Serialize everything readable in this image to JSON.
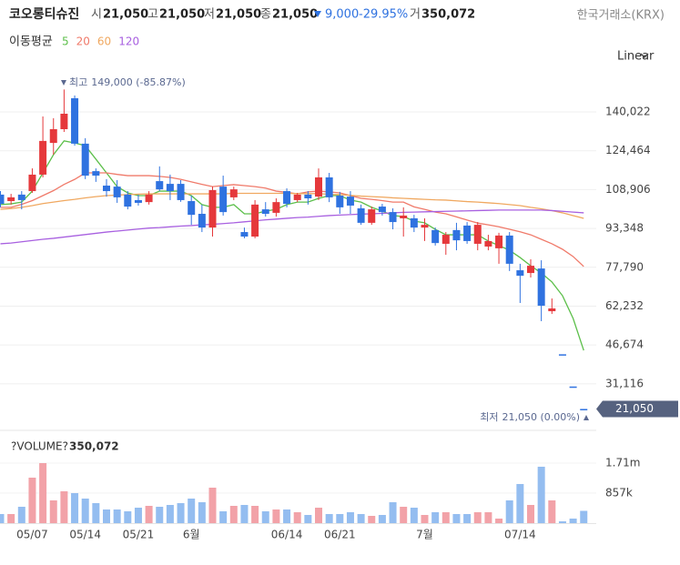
{
  "chart_data": {
    "type": "candlestick",
    "title": "코오롱티슈진",
    "quote": [
      {
        "label": "시",
        "value": "21,050"
      },
      {
        "label": "고",
        "value": "21,050"
      },
      {
        "label": "저",
        "value": "21,050"
      },
      {
        "label": "종",
        "value": "21,050"
      }
    ],
    "change": "9,000",
    "change_pct": "-29.95%",
    "volume_quote": {
      "label": "거",
      "value": "350,072"
    },
    "exchange": "한국거래소(KRX)",
    "ma_title": "이동평균",
    "scale": "Linear",
    "high_annotation": {
      "label": "최고",
      "text": "149,000 (-85.87%)"
    },
    "low_annotation": {
      "label": "최저",
      "text": "21,050 (0.00%)"
    },
    "last_price": {
      "value": 21050,
      "label": "21,050"
    },
    "categories": [
      null,
      null,
      null,
      "05/07",
      null,
      null,
      null,
      null,
      "05/14",
      null,
      null,
      null,
      null,
      "05/21",
      null,
      null,
      null,
      null,
      "6월",
      null,
      null,
      null,
      null,
      null,
      null,
      null,
      null,
      "06/14",
      null,
      null,
      null,
      null,
      "06/21",
      null,
      null,
      null,
      null,
      null,
      null,
      null,
      "7월",
      null,
      null,
      null,
      null,
      null,
      null,
      null,
      null,
      "07/14",
      null,
      null,
      null,
      null,
      null,
      null
    ],
    "open": [
      106900,
      104300,
      106900,
      108300,
      114900,
      127600,
      133100,
      145500,
      127300,
      116300,
      110500,
      110100,
      106900,
      104700,
      103900,
      112300,
      111200,
      111200,
      104300,
      99200,
      93700,
      110100,
      105800,
      91900,
      90100,
      101000,
      99600,
      108300,
      104700,
      106900,
      106100,
      113800,
      106500,
      106100,
      101400,
      95600,
      102100,
      99900,
      97400,
      97400,
      93700,
      92700,
      87200,
      92700,
      94500,
      87200,
      86100,
      85400,
      90500,
      76600,
      75500,
      77300,
      60200,
      42950,
      30050,
      21050
    ],
    "high": [
      108300,
      107200,
      108300,
      117400,
      138200,
      137500,
      149000,
      146600,
      129500,
      117400,
      113100,
      112700,
      108300,
      106900,
      108300,
      118200,
      114900,
      112700,
      106500,
      102900,
      110100,
      114500,
      110100,
      93700,
      104700,
      103900,
      105400,
      109400,
      107600,
      108300,
      117400,
      115600,
      108000,
      108300,
      102900,
      102100,
      103200,
      101400,
      101800,
      98800,
      97400,
      93700,
      91900,
      95600,
      95900,
      95900,
      90800,
      91600,
      91900,
      79200,
      81000,
      80600,
      65300,
      42950,
      30050,
      21050
    ],
    "low": [
      101800,
      102900,
      101000,
      107600,
      113800,
      122900,
      132000,
      126500,
      113100,
      112000,
      106100,
      103600,
      101000,
      102500,
      102900,
      108300,
      104700,
      104000,
      94800,
      91900,
      90100,
      98500,
      104700,
      89400,
      89400,
      98100,
      98100,
      101800,
      103900,
      102900,
      104700,
      103900,
      99200,
      99200,
      94800,
      94800,
      98500,
      93000,
      90100,
      91900,
      88300,
      86500,
      82800,
      84600,
      87200,
      84600,
      84600,
      79200,
      76300,
      63500,
      73700,
      56200,
      59100,
      42950,
      30050,
      21050
    ],
    "close": [
      103200,
      105800,
      104700,
      114900,
      128400,
      133100,
      139300,
      127300,
      114500,
      114500,
      108300,
      105800,
      102100,
      103600,
      106900,
      109000,
      108300,
      104700,
      98800,
      93700,
      108700,
      99900,
      109000,
      90100,
      102900,
      99200,
      103900,
      103200,
      106900,
      105400,
      113800,
      105800,
      101800,
      102500,
      95600,
      101000,
      99900,
      95900,
      98500,
      93700,
      94800,
      87500,
      90800,
      88600,
      88300,
      94800,
      88300,
      90500,
      79200,
      74400,
      78400,
      62400,
      61300,
      42950,
      30050,
      21050
    ],
    "up_color": "#e5383b",
    "down_color": "#2f72e0",
    "ylim": [
      13575,
      155691
    ],
    "yticks": [
      {
        "value": 140022,
        "label": "140,022"
      },
      {
        "value": 124464,
        "label": "124,464"
      },
      {
        "value": 108906,
        "label": "108,906"
      },
      {
        "value": 93348,
        "label": "93,348"
      },
      {
        "value": 77790,
        "label": "77,790"
      },
      {
        "value": 62232,
        "label": "62,232"
      },
      {
        "value": 46674,
        "label": "46,674"
      },
      {
        "value": 31116,
        "label": "31,116"
      }
    ],
    "grid": true,
    "series": [
      {
        "name": "5",
        "color": "#5cbf4a",
        "values": [
          102900,
          103200,
          103900,
          108300,
          115600,
          122900,
          128400,
          127600,
          126500,
          121100,
          115600,
          110100,
          107600,
          106500,
          106500,
          108300,
          108300,
          108300,
          106500,
          102900,
          101800,
          101800,
          102900,
          99200,
          99200,
          100300,
          101000,
          102900,
          103900,
          103900,
          105400,
          106500,
          106500,
          104700,
          103900,
          101800,
          100300,
          98500,
          98100,
          96300,
          95600,
          93000,
          90800,
          90800,
          90800,
          90800,
          88300,
          86500,
          84600,
          81700,
          78400,
          75500,
          71900,
          66400,
          57300,
          44500
        ]
      },
      {
        "name": "20",
        "color": "#f07a6a",
        "values": [
          101800,
          101800,
          103000,
          104500,
          106500,
          108500,
          111000,
          113000,
          115600,
          115600,
          115600,
          115000,
          114500,
          114500,
          114500,
          114200,
          113800,
          113000,
          112000,
          111000,
          110100,
          110500,
          110900,
          110500,
          110100,
          109500,
          108300,
          107800,
          107200,
          108000,
          108300,
          108000,
          107600,
          106500,
          105400,
          105000,
          104500,
          103900,
          103900,
          102000,
          101000,
          99900,
          99200,
          98000,
          96700,
          95500,
          94800,
          94000,
          93000,
          92000,
          90800,
          89000,
          87200,
          85000,
          82100,
          78100
        ]
      },
      {
        "name": "60",
        "color": "#f0a860",
        "values": [
          101000,
          101300,
          101800,
          102500,
          103300,
          103900,
          104500,
          105000,
          105600,
          106100,
          106500,
          106700,
          106900,
          107100,
          107200,
          107200,
          107200,
          107200,
          107200,
          107200,
          107200,
          107200,
          107400,
          107400,
          107400,
          107400,
          107400,
          107400,
          107300,
          107300,
          107300,
          107000,
          106900,
          106600,
          106300,
          106100,
          105900,
          105600,
          105400,
          105200,
          105000,
          104800,
          104700,
          104400,
          104100,
          103900,
          103600,
          103300,
          102900,
          102500,
          101800,
          101200,
          100500,
          99600,
          98500,
          97400
        ]
      },
      {
        "name": "120",
        "color": "#a860e0",
        "values": [
          87200,
          87500,
          88000,
          88500,
          89000,
          89400,
          89900,
          90400,
          90900,
          91400,
          91900,
          92300,
          92700,
          93100,
          93500,
          93700,
          94000,
          94300,
          94500,
          94800,
          95000,
          95300,
          95600,
          96000,
          96400,
          96800,
          97100,
          97400,
          97700,
          97900,
          98200,
          98500,
          98700,
          98900,
          99100,
          99200,
          99400,
          99600,
          99800,
          99900,
          100000,
          100100,
          100200,
          100300,
          100400,
          100500,
          100600,
          100700,
          100700,
          100700,
          100700,
          100700,
          100500,
          100200,
          99900,
          99600
        ]
      }
    ],
    "volume": {
      "title": "?VOLUME?",
      "current": "350,072",
      "values": [
        259000,
        259000,
        466000,
        1295000,
        1709000,
        648000,
        907000,
        855000,
        699000,
        570000,
        389000,
        389000,
        337000,
        440000,
        492000,
        466000,
        518000,
        570000,
        699000,
        596000,
        1010000,
        337000,
        492000,
        518000,
        492000,
        337000,
        389000,
        389000,
        311000,
        233000,
        440000,
        259000,
        259000,
        311000,
        259000,
        207000,
        233000,
        596000,
        466000,
        440000,
        233000,
        311000,
        311000,
        259000,
        259000,
        311000,
        311000,
        130000,
        648000,
        1114000,
        518000,
        1606000,
        648000,
        52000,
        130000,
        350072
      ],
      "ylim": [
        0,
        2512000
      ],
      "yticks": [
        {
          "value": 1710000,
          "label": "1.71m"
        },
        {
          "value": 857000,
          "label": "857k"
        }
      ],
      "up_color": "#f2a2a8",
      "down_color": "#94bdf0"
    }
  }
}
